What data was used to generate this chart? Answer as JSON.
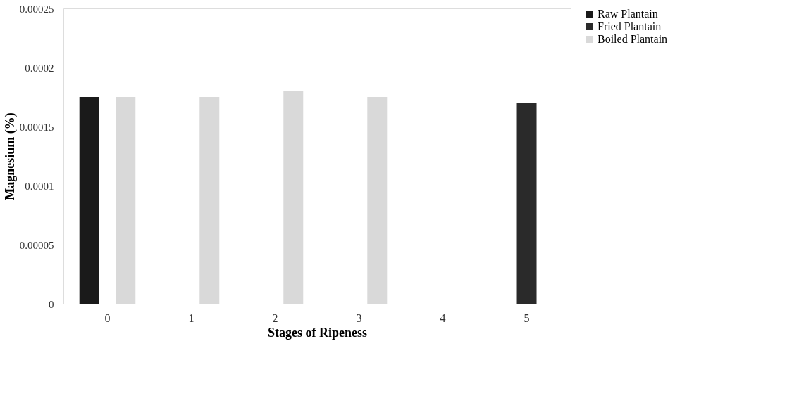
{
  "chart_data": {
    "type": "bar",
    "xlabel": "Stages of Ripeness",
    "ylabel": "Magnesium  (%)",
    "categories": [
      "0",
      "1",
      "2",
      "3",
      "4",
      "5"
    ],
    "series": [
      {
        "name": "Raw Plantain",
        "color": "#1a1a1a",
        "values": [
          0.000175,
          null,
          null,
          null,
          null,
          null
        ]
      },
      {
        "name": "Fried Plantain",
        "color": "#2a2a2a",
        "values": [
          null,
          null,
          null,
          null,
          null,
          0.00017
        ]
      },
      {
        "name": "Boiled Plantain",
        "color": "#d9d9d9",
        "values": [
          0.000175,
          0.000175,
          0.00018,
          0.000175,
          null,
          null
        ]
      }
    ],
    "ylim": [
      0,
      0.00025
    ],
    "yticks": [
      0,
      {
        "value": 5e-05,
        "label": "0.00005"
      },
      0.0001,
      0.00015,
      0.0002,
      {
        "value": 0.00025,
        "label": "0.00025"
      }
    ],
    "grid": false,
    "legend": "right"
  }
}
